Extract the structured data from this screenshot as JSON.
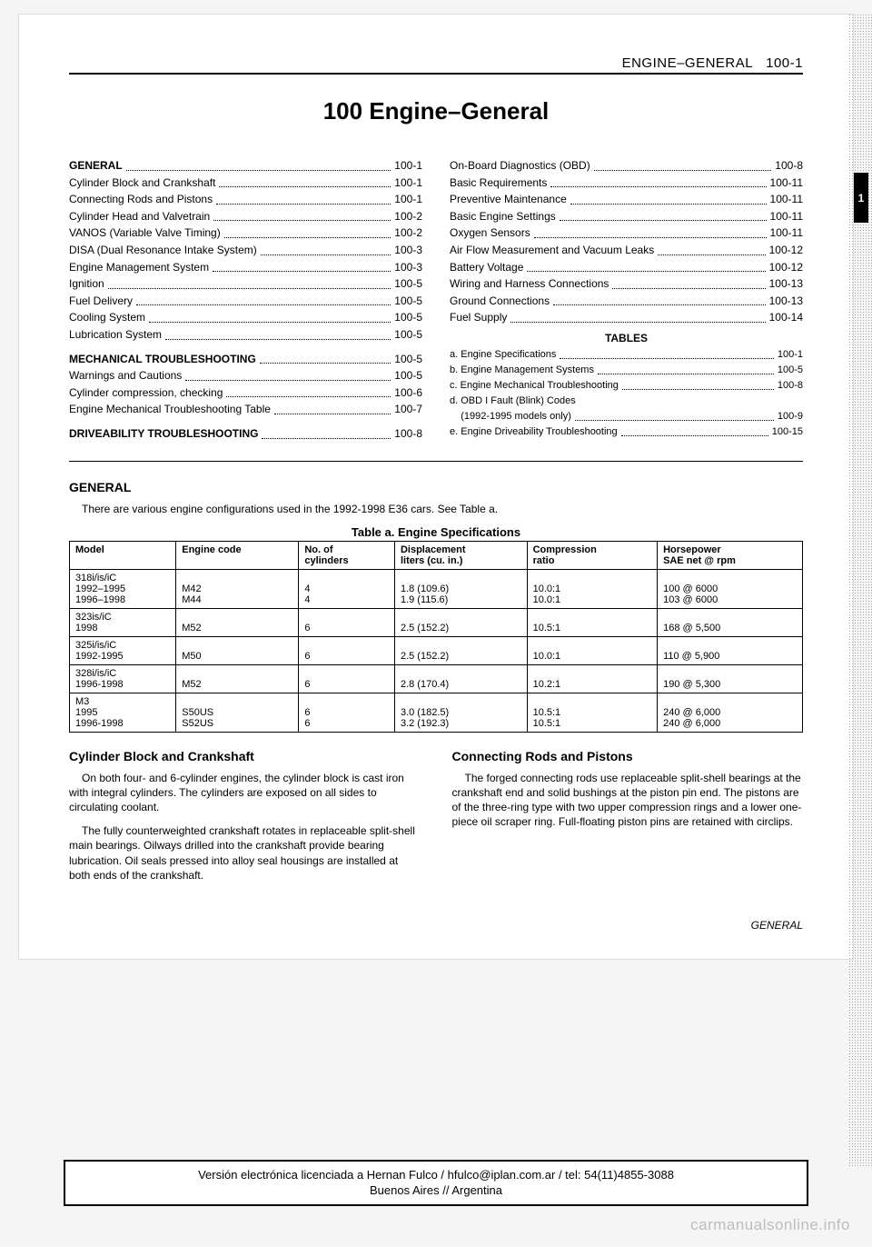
{
  "header": {
    "section": "ENGINE–GENERAL",
    "pageRef": "100-1",
    "tab": "1"
  },
  "title": "100 Engine–General",
  "toc": {
    "left": [
      {
        "label": "GENERAL",
        "page": "100-1",
        "bold": true
      },
      {
        "label": "Cylinder Block and Crankshaft",
        "page": "100-1"
      },
      {
        "label": "Connecting Rods and Pistons",
        "page": "100-1"
      },
      {
        "label": "Cylinder Head and Valvetrain",
        "page": "100-2"
      },
      {
        "label": "VANOS (Variable Valve Timing)",
        "page": "100-2"
      },
      {
        "label": "DISA (Dual Resonance Intake System)",
        "page": "100-3"
      },
      {
        "label": "Engine Management System",
        "page": "100-3"
      },
      {
        "label": "Ignition",
        "page": "100-5"
      },
      {
        "label": "Fuel Delivery",
        "page": "100-5"
      },
      {
        "label": "Cooling System",
        "page": "100-5"
      },
      {
        "label": "Lubrication System",
        "page": "100-5"
      },
      {
        "spacer": true
      },
      {
        "label": "MECHANICAL TROUBLESHOOTING",
        "page": "100-5",
        "bold": true
      },
      {
        "label": "Warnings and Cautions",
        "page": "100-5"
      },
      {
        "label": "Cylinder compression, checking",
        "page": "100-6"
      },
      {
        "label": "Engine Mechanical Troubleshooting Table",
        "page": "100-7"
      },
      {
        "spacer": true
      },
      {
        "label": "DRIVEABILITY TROUBLESHOOTING",
        "page": "100-8",
        "bold": true
      }
    ],
    "right": [
      {
        "label": "On-Board Diagnostics (OBD)",
        "page": "100-8"
      },
      {
        "label": "Basic Requirements",
        "page": "100-11"
      },
      {
        "label": "Preventive Maintenance",
        "page": "100-11"
      },
      {
        "label": "Basic Engine Settings",
        "page": "100-11"
      },
      {
        "label": "Oxygen Sensors",
        "page": "100-11"
      },
      {
        "label": "Air Flow Measurement and Vacuum Leaks",
        "page": "100-12"
      },
      {
        "label": "Battery Voltage",
        "page": "100-12"
      },
      {
        "label": "Wiring and Harness Connections",
        "page": "100-13"
      },
      {
        "label": "Ground Connections",
        "page": "100-13"
      },
      {
        "label": "Fuel Supply",
        "page": "100-14"
      }
    ],
    "tablesHeader": "TABLES",
    "tables": [
      {
        "label": "a. Engine Specifications",
        "page": "100-1"
      },
      {
        "label": "b. Engine Management Systems",
        "page": "100-5"
      },
      {
        "label": "c. Engine Mechanical Troubleshooting",
        "page": "100-8"
      },
      {
        "label": "d. OBD I Fault (Blink) Codes",
        "page": ""
      },
      {
        "label": "    (1992-1995 models only)",
        "page": "100-9"
      },
      {
        "label": "e. Engine Driveability Troubleshooting",
        "page": "100-15"
      }
    ]
  },
  "general": {
    "heading": "GENERAL",
    "intro": "There are various engine configurations used in the 1992-1998 E36 cars. See Table a."
  },
  "specTable": {
    "caption": "Table a. Engine Specifications",
    "columns": [
      "Model",
      "Engine code",
      "No. of cylinders",
      "Displacement liters (cu. in.)",
      "Compression ratio",
      "Horsepower SAE net @ rpm"
    ],
    "rows": [
      [
        "318i/is/iC\n1992–1995\n1996–1998",
        "\nM42\nM44",
        "\n4\n4",
        "\n1.8 (109.6)\n1.9 (115.6)",
        "\n10.0:1\n10.0:1",
        "\n100 @ 6000\n103 @ 6000"
      ],
      [
        "323is/iC\n1998",
        "\nM52",
        "\n6",
        "\n2.5 (152.2)",
        "\n10.5:1",
        "\n168 @ 5,500"
      ],
      [
        "325i/is/iC\n1992-1995",
        "\nM50",
        "\n6",
        "\n2.5 (152.2)",
        "\n10.0:1",
        "\n110 @ 5,900"
      ],
      [
        "328i/is/iC\n1996-1998",
        "\nM52",
        "\n6",
        "\n2.8 (170.4)",
        "\n10.2:1",
        "\n190 @ 5,300"
      ],
      [
        "M3\n1995\n1996-1998",
        "\nS50US\nS52US",
        "\n6\n6",
        "\n3.0 (182.5)\n3.2 (192.3)",
        "\n10.5:1\n10.5:1",
        "\n240 @ 6,000\n240 @ 6,000"
      ]
    ]
  },
  "columns": {
    "left": {
      "heading": "Cylinder Block and Crankshaft",
      "p1": "On both four- and 6-cylinder engines, the cylinder block is cast iron with integral cylinders. The cylinders are exposed on all sides to circulating coolant.",
      "p2": "The fully counterweighted crankshaft rotates in replaceable split-shell main bearings. Oilways drilled into the crankshaft provide bearing lubrication. Oil seals pressed into alloy seal housings are installed at both ends of the crankshaft."
    },
    "right": {
      "heading": "Connecting Rods and Pistons",
      "p1": "The forged connecting rods use replaceable split-shell bearings at the crankshaft end and solid bushings at the piston pin end. The pistons are of the three-ring type with two upper compression rings and a lower one-piece oil scraper ring. Full-floating piston pins are retained with circlips."
    }
  },
  "footerRight": "GENERAL",
  "license": {
    "line1": "Versión electrónica licenciada a Hernan Fulco / hfulco@iplan.com.ar / tel: 54(11)4855-3088",
    "line2": "Buenos Aires // Argentina"
  },
  "watermark": "carmanualsonline.info"
}
